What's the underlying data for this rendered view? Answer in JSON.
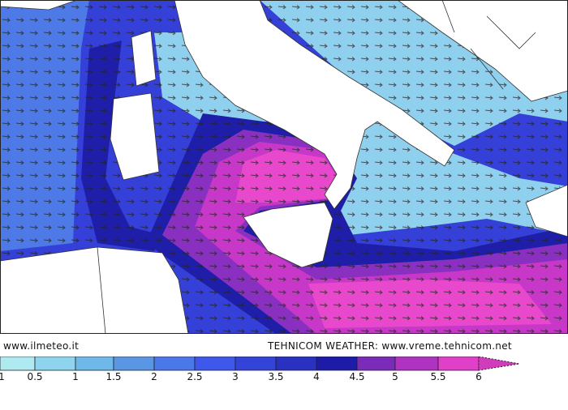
{
  "credits": {
    "left": "www.ilmeteo.it",
    "right": "TEHNICOM WEATHER: www.vreme.tehnicom.net"
  },
  "legend": {
    "labels": [
      "1",
      "0.5",
      "1",
      "1.5",
      "2",
      "2.5",
      "3",
      "3.5",
      "4",
      "4.5",
      "5",
      "5.5",
      "6"
    ],
    "colors": [
      "#aeeaf0",
      "#8ed4ee",
      "#6fb8ea",
      "#5a96e4",
      "#4a78e8",
      "#3d58ea",
      "#3444d8",
      "#2a30c0",
      "#1c1ca8",
      "#7a2cb8",
      "#b032c0",
      "#e040c8",
      "#d03cbc"
    ]
  },
  "map": {
    "colors": {
      "land": "#ffffff",
      "sea_light": "#8fd0ee",
      "sea_mid": "#4d7ae6",
      "sea_deep": "#3440d8",
      "sea_dark": "#1e1ea8",
      "purple": "#8a30c0",
      "magenta": "#c838c8",
      "pink": "#e848cc",
      "border": "#333333"
    },
    "arrow_icon": "wind-arrow-icon"
  }
}
